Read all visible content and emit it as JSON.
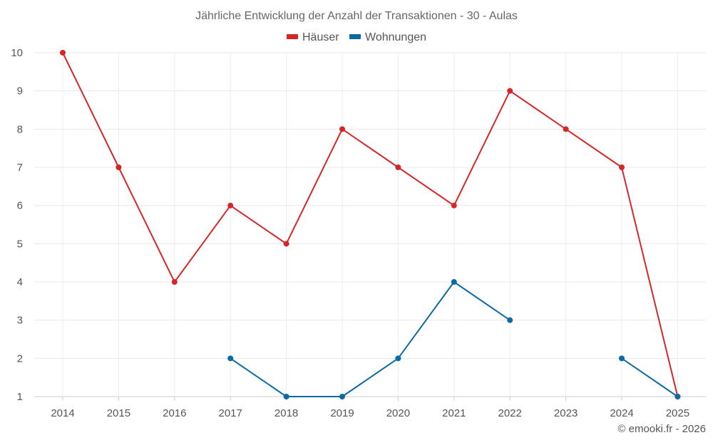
{
  "chart_data": {
    "type": "line",
    "title": "Jährliche Entwicklung der Anzahl der Transaktionen - 30 - Aulas",
    "categories": [
      "2014",
      "2015",
      "2016",
      "2017",
      "2018",
      "2019",
      "2020",
      "2021",
      "2022",
      "2023",
      "2024",
      "2025"
    ],
    "ylim": [
      1,
      10
    ],
    "yticks": [
      "1",
      "2",
      "3",
      "4",
      "5",
      "6",
      "7",
      "8",
      "9",
      "10"
    ],
    "grid": true,
    "legend_position": "top-center",
    "series": [
      {
        "name": "Häuser",
        "color": "#d62728",
        "values": [
          10,
          7,
          4,
          6,
          5,
          8,
          7,
          6,
          9,
          8,
          7,
          1
        ]
      },
      {
        "name": "Wohnungen",
        "color": "#0a6aa1",
        "values": [
          null,
          null,
          null,
          2,
          1,
          1,
          2,
          4,
          3,
          null,
          2,
          1
        ]
      }
    ]
  },
  "credit": "© emooki.fr - 2026"
}
